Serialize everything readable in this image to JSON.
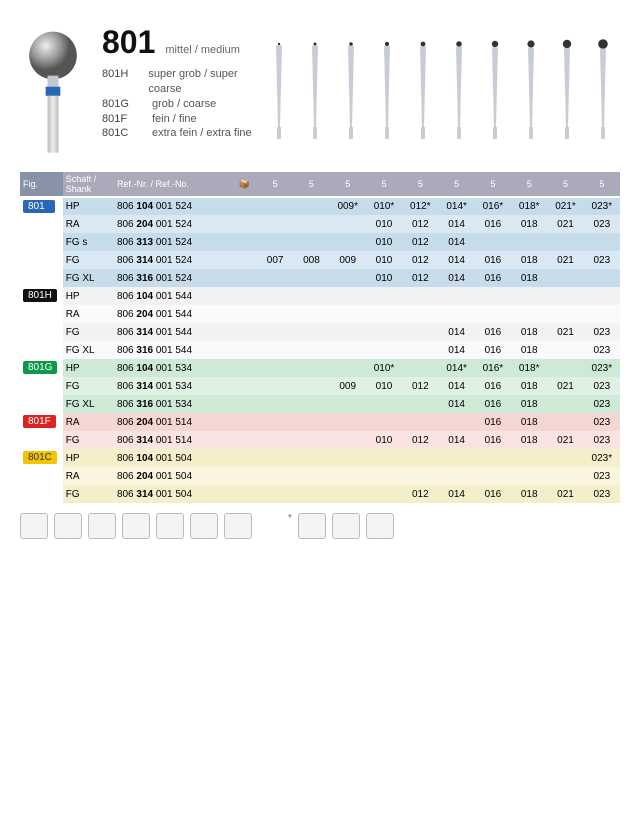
{
  "product": {
    "code": "801",
    "subtitle": "mittel / medium",
    "variants": [
      {
        "code": "801H",
        "desc": "super grob / super coarse"
      },
      {
        "code": "801G",
        "desc": "grob / coarse"
      },
      {
        "code": "801F",
        "desc": "fein / fine"
      },
      {
        "code": "801C",
        "desc": "extra fein / extra fine"
      }
    ]
  },
  "columns": {
    "fig": "Fig.",
    "shank": "Schaft / Shank",
    "ref": "Ref.-Nr. / Ref.-No.",
    "pack": "📦"
  },
  "size_header": [
    "5",
    "5",
    "5",
    "5",
    "5",
    "5",
    "5",
    "5",
    "5",
    "5"
  ],
  "mini_ball_sizes": [
    1.2,
    1.5,
    1.8,
    2.1,
    2.4,
    2.8,
    3.2,
    3.6,
    4.2,
    4.8
  ],
  "groups": [
    {
      "tag": "801",
      "tag_color": "blue",
      "row_classes": [
        "blue-a",
        "blue-b"
      ],
      "rows": [
        {
          "shank": "HP",
          "ref": [
            "806 ",
            "104",
            " 001 524"
          ],
          "cells": [
            "",
            "",
            "009*",
            "010*",
            "012*",
            "014*",
            "016*",
            "018*",
            "021*",
            "023*"
          ]
        },
        {
          "shank": "RA",
          "ref": [
            "806 ",
            "204",
            " 001 524"
          ],
          "cells": [
            "",
            "",
            "",
            "010",
            "012",
            "014",
            "016",
            "018",
            "021",
            "023"
          ]
        },
        {
          "shank": "FG s",
          "ref": [
            "806 ",
            "313",
            " 001 524"
          ],
          "cells": [
            "",
            "",
            "",
            "010",
            "012",
            "014",
            "",
            "",
            "",
            ""
          ]
        },
        {
          "shank": "FG",
          "ref": [
            "806 ",
            "314",
            " 001 524"
          ],
          "cells": [
            "007",
            "008",
            "009",
            "010",
            "012",
            "014",
            "016",
            "018",
            "021",
            "023"
          ]
        },
        {
          "shank": "FG XL",
          "ref": [
            "806 ",
            "316",
            " 001 524"
          ],
          "cells": [
            "",
            "",
            "",
            "010",
            "012",
            "014",
            "016",
            "018",
            "",
            ""
          ]
        }
      ]
    },
    {
      "tag": "801H",
      "tag_color": "black",
      "row_classes": [
        "alt-a",
        "alt-b"
      ],
      "rows": [
        {
          "shank": "HP",
          "ref": [
            "806 ",
            "104",
            " 001 544"
          ],
          "cells": [
            "",
            "",
            "",
            "",
            "",
            "",
            "",
            "",
            "",
            ""
          ]
        },
        {
          "shank": "RA",
          "ref": [
            "806 ",
            "204",
            " 001 544"
          ],
          "cells": [
            "",
            "",
            "",
            "",
            "",
            "",
            "",
            "",
            "",
            ""
          ]
        },
        {
          "shank": "FG",
          "ref": [
            "806 ",
            "314",
            " 001 544"
          ],
          "cells": [
            "",
            "",
            "",
            "",
            "",
            "014",
            "016",
            "018",
            "021",
            "023"
          ]
        },
        {
          "shank": "FG XL",
          "ref": [
            "806 ",
            "316",
            " 001 544"
          ],
          "cells": [
            "",
            "",
            "",
            "",
            "",
            "014",
            "016",
            "018",
            "",
            "023"
          ]
        }
      ]
    },
    {
      "tag": "801G",
      "tag_color": "green",
      "row_classes": [
        "green-a",
        "green-b"
      ],
      "rows": [
        {
          "shank": "HP",
          "ref": [
            "806 ",
            "104",
            " 001 534"
          ],
          "cells": [
            "",
            "",
            "",
            "010*",
            "",
            "014*",
            "016*",
            "018*",
            "",
            "023*"
          ]
        },
        {
          "shank": "FG",
          "ref": [
            "806 ",
            "314",
            " 001 534"
          ],
          "cells": [
            "",
            "",
            "009",
            "010",
            "012",
            "014",
            "016",
            "018",
            "021",
            "023"
          ]
        },
        {
          "shank": "FG XL",
          "ref": [
            "806 ",
            "316",
            " 001 534"
          ],
          "cells": [
            "",
            "",
            "",
            "",
            "",
            "014",
            "016",
            "018",
            "",
            "023"
          ]
        }
      ]
    },
    {
      "tag": "801F",
      "tag_color": "red",
      "row_classes": [
        "red-a",
        "red-b"
      ],
      "rows": [
        {
          "shank": "RA",
          "ref": [
            "806 ",
            "204",
            " 001 514"
          ],
          "cells": [
            "",
            "",
            "",
            "",
            "",
            "",
            "016",
            "018",
            "",
            "023"
          ]
        },
        {
          "shank": "FG",
          "ref": [
            "806 ",
            "314",
            " 001 514"
          ],
          "cells": [
            "",
            "",
            "",
            "010",
            "012",
            "014",
            "016",
            "018",
            "021",
            "023"
          ]
        }
      ]
    },
    {
      "tag": "801C",
      "tag_color": "yellow",
      "row_classes": [
        "yel-a",
        "yel-b"
      ],
      "rows": [
        {
          "shank": "HP",
          "ref": [
            "806 ",
            "104",
            " 001 504"
          ],
          "cells": [
            "",
            "",
            "",
            "",
            "",
            "",
            "",
            "",
            "",
            "023*"
          ]
        },
        {
          "shank": "RA",
          "ref": [
            "806 ",
            "204",
            " 001 504"
          ],
          "cells": [
            "",
            "",
            "",
            "",
            "",
            "",
            "",
            "",
            "",
            "023"
          ]
        },
        {
          "shank": "FG",
          "ref": [
            "806 ",
            "314",
            " 001 504"
          ],
          "cells": [
            "",
            "",
            "",
            "",
            "012",
            "014",
            "016",
            "018",
            "021",
            "023"
          ]
        }
      ]
    }
  ],
  "footer_icons": [
    "⬚",
    "⬚",
    "⬚",
    "⬚",
    "⬚",
    "⬚",
    "⬚"
  ],
  "footer_right_icons": [
    "⬚",
    "⬚",
    "⬚"
  ],
  "colors": {
    "blue": "#2a66b8",
    "black": "#111",
    "green": "#0b9a4a",
    "red": "#d22",
    "yellow": "#f3c500",
    "header_bg": "#8892a8"
  }
}
